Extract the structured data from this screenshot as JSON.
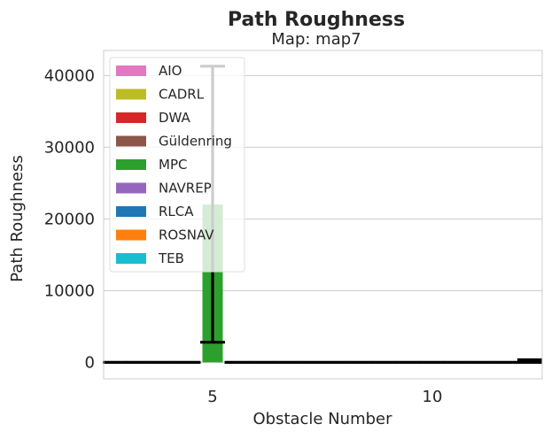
{
  "chart_data": {
    "type": "bar",
    "title": "Path Roughness",
    "subtitle": "Map: map7",
    "xlabel": "Obstacle Number",
    "ylabel": "Path Roughness",
    "categories": [
      "5",
      "10"
    ],
    "ylim": [
      -2300,
      43500
    ],
    "yticks": [
      0,
      10000,
      20000,
      30000,
      40000
    ],
    "yticklabels": [
      "0",
      "10000",
      "20000",
      "30000",
      "40000"
    ],
    "grid": true,
    "legend_position": "top-left",
    "series": [
      {
        "name": "AIO",
        "color": "#e377c2",
        "values": [
          0,
          0
        ],
        "err_low": [
          0,
          0
        ],
        "err_high": [
          0,
          0
        ]
      },
      {
        "name": "CADRL",
        "color": "#bcbd22",
        "values": [
          0,
          0
        ],
        "err_low": [
          0,
          0
        ],
        "err_high": [
          0,
          0
        ]
      },
      {
        "name": "DWA",
        "color": "#d62728",
        "values": [
          0,
          0
        ],
        "err_low": [
          0,
          0
        ],
        "err_high": [
          0,
          0
        ]
      },
      {
        "name": "Güldenring",
        "color": "#8c564b",
        "values": [
          0,
          0
        ],
        "err_low": [
          0,
          0
        ],
        "err_high": [
          0,
          0
        ]
      },
      {
        "name": "MPC",
        "color": "#2ca02c",
        "values": [
          22000,
          0
        ],
        "err_low": [
          2800,
          0
        ],
        "err_high": [
          41300,
          0
        ]
      },
      {
        "name": "NAVREP",
        "color": "#9467bd",
        "values": [
          0,
          0
        ],
        "err_low": [
          0,
          0
        ],
        "err_high": [
          0,
          0
        ]
      },
      {
        "name": "RLCA",
        "color": "#1f77b4",
        "values": [
          0,
          0
        ],
        "err_low": [
          0,
          0
        ],
        "err_high": [
          0,
          0
        ]
      },
      {
        "name": "ROSNAV",
        "color": "#ff7f0e",
        "values": [
          0,
          0
        ],
        "err_low": [
          0,
          0
        ],
        "err_high": [
          0,
          0
        ]
      },
      {
        "name": "TEB",
        "color": "#17becf",
        "values": [
          0,
          150
        ],
        "err_low": [
          0,
          0
        ],
        "err_high": [
          0,
          350
        ]
      }
    ]
  }
}
